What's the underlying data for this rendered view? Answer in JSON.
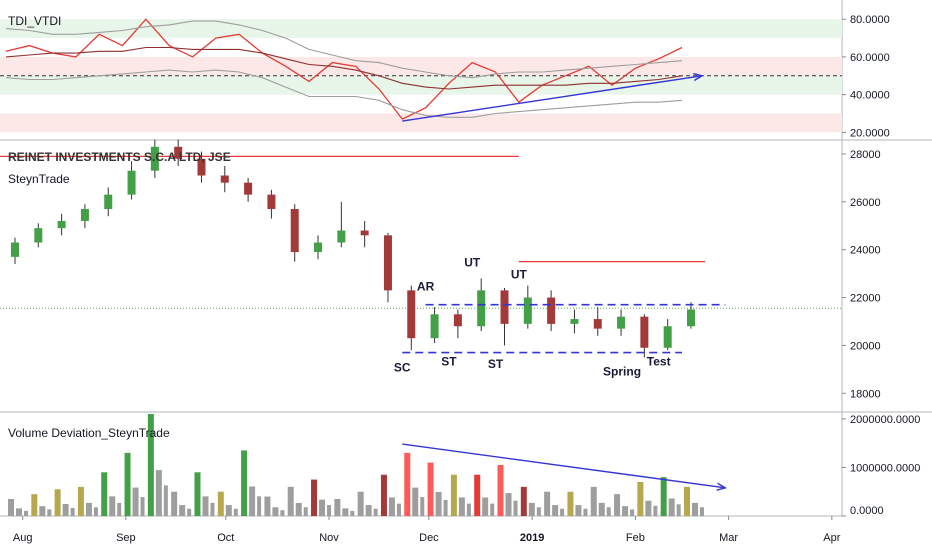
{
  "panes": {
    "tdi": {
      "title": "TDI_VTDI"
    },
    "price": {
      "title": "REINET INVESTMENTS S.C.A LTD, JSE",
      "subtitle": "SteynTrade"
    },
    "volume": {
      "title": "Volume Deviation_SteynTrade"
    }
  },
  "chart_data": [
    {
      "type": "line",
      "pane": "TDI_VTDI",
      "y_ticks": [
        "80.0000",
        "60.0000",
        "40.0000",
        "20.0000"
      ],
      "ylim": [
        17,
        87
      ],
      "reference_line": 50,
      "zones": {
        "green": [
          [
            70,
            80
          ],
          [
            40,
            50
          ]
        ],
        "red": [
          [
            50,
            60
          ],
          [
            20,
            30
          ]
        ]
      },
      "x": [
        "Jul 27",
        "Aug 3",
        "Aug 10",
        "Aug 17",
        "Aug 24",
        "Aug 31",
        "Sep 7",
        "Sep 14",
        "Sep 21",
        "Sep 28",
        "Oct 5",
        "Oct 12",
        "Oct 19",
        "Oct 26",
        "Nov 2",
        "Nov 9",
        "Nov 16",
        "Nov 23",
        "Nov 30",
        "Dec 7",
        "Dec 14",
        "Dec 21",
        "Dec 28",
        "Jan 4",
        "Jan 11",
        "Jan 18",
        "Jan 25",
        "Feb 1",
        "Feb 8",
        "Feb 15"
      ],
      "series": [
        {
          "color": "#e53935",
          "values": [
            63,
            66,
            62,
            60,
            72,
            66,
            80,
            66,
            60,
            70,
            72,
            62,
            55,
            47,
            57,
            55,
            43,
            27,
            33,
            46,
            57,
            52,
            36,
            45,
            50,
            55,
            45,
            54,
            59,
            65
          ]
        },
        {
          "color": "#8d2f2f",
          "values": [
            60,
            61,
            62,
            62,
            63,
            63,
            65,
            65,
            64,
            64,
            64,
            62,
            59,
            56,
            55,
            53,
            50,
            46,
            44,
            43,
            44,
            45,
            45,
            45,
            45,
            46,
            46,
            47,
            48,
            50
          ]
        },
        {
          "color": "#9e9e9e",
          "values": [
            75,
            74,
            72,
            72,
            73,
            74,
            76,
            77,
            79,
            79,
            77,
            74,
            70,
            64,
            61,
            58,
            57,
            54,
            52,
            50,
            49,
            51,
            52,
            52,
            53,
            54,
            55,
            56,
            57,
            58
          ]
        },
        {
          "color": "#9e9e9e",
          "values": [
            49,
            48,
            48,
            49,
            50,
            51,
            52,
            53,
            52,
            53,
            52,
            49,
            44,
            39,
            39,
            39,
            37,
            32,
            29,
            28,
            28,
            30,
            31,
            32,
            33,
            34,
            35,
            36,
            36,
            37
          ]
        }
      ],
      "annotation_arrow": {
        "from": [
          "Nov 23",
          26
        ],
        "to": [
          "Feb 21",
          50
        ],
        "color": "#3535d6"
      }
    },
    {
      "type": "candlestick",
      "pane": "REINET INVESTMENTS S.C.A LTD, JSE",
      "y_ticks": [
        "28000",
        "26000",
        "24000",
        "22000",
        "20000",
        "18000"
      ],
      "ylim": [
        17300,
        28500
      ],
      "current_price": 21550,
      "candles_weekly": [
        {
          "x": "Jul 27",
          "o": 23700,
          "h": 24500,
          "l": 23400,
          "c": 24300
        },
        {
          "x": "Aug 3",
          "o": 24300,
          "h": 25100,
          "l": 24100,
          "c": 24900
        },
        {
          "x": "Aug 10",
          "o": 24900,
          "h": 25500,
          "l": 24600,
          "c": 25200
        },
        {
          "x": "Aug 17",
          "o": 25200,
          "h": 25900,
          "l": 24900,
          "c": 25700
        },
        {
          "x": "Aug 24",
          "o": 25700,
          "h": 26600,
          "l": 25400,
          "c": 26300
        },
        {
          "x": "Aug 31",
          "o": 26300,
          "h": 27700,
          "l": 26100,
          "c": 27300
        },
        {
          "x": "Sep 7",
          "o": 27300,
          "h": 28600,
          "l": 27000,
          "c": 28300
        },
        {
          "x": "Sep 14",
          "o": 28300,
          "h": 28600,
          "l": 27500,
          "c": 27800
        },
        {
          "x": "Sep 21",
          "o": 27800,
          "h": 28100,
          "l": 26800,
          "c": 27100
        },
        {
          "x": "Sep 28",
          "o": 27100,
          "h": 27500,
          "l": 26400,
          "c": 26800
        },
        {
          "x": "Oct 5",
          "o": 26800,
          "h": 27000,
          "l": 26000,
          "c": 26300
        },
        {
          "x": "Oct 12",
          "o": 26300,
          "h": 26500,
          "l": 25300,
          "c": 25700
        },
        {
          "x": "Oct 19",
          "o": 25700,
          "h": 25900,
          "l": 23500,
          "c": 23900
        },
        {
          "x": "Oct 26",
          "o": 23900,
          "h": 24600,
          "l": 23600,
          "c": 24300
        },
        {
          "x": "Nov 2",
          "o": 24300,
          "h": 26000,
          "l": 24100,
          "c": 24800
        },
        {
          "x": "Nov 9",
          "o": 24800,
          "h": 25200,
          "l": 24100,
          "c": 24600
        },
        {
          "x": "Nov 16",
          "o": 24600,
          "h": 24700,
          "l": 21800,
          "c": 22300
        },
        {
          "x": "Nov 23",
          "o": 22300,
          "h": 22500,
          "l": 19800,
          "c": 20300
        },
        {
          "x": "Nov 30",
          "o": 20300,
          "h": 21600,
          "l": 20100,
          "c": 21300
        },
        {
          "x": "Dec 7",
          "o": 21300,
          "h": 21500,
          "l": 20300,
          "c": 20800
        },
        {
          "x": "Dec 14",
          "o": 20800,
          "h": 22800,
          "l": 20600,
          "c": 22300
        },
        {
          "x": "Dec 21",
          "o": 22300,
          "h": 22400,
          "l": 20000,
          "c": 20900
        },
        {
          "x": "Dec 28",
          "o": 20900,
          "h": 22500,
          "l": 20700,
          "c": 22000
        },
        {
          "x": "Jan 4",
          "o": 22000,
          "h": 22300,
          "l": 20600,
          "c": 20900
        },
        {
          "x": "Jan 11",
          "o": 20900,
          "h": 21500,
          "l": 20500,
          "c": 21100
        },
        {
          "x": "Jan 18",
          "o": 21100,
          "h": 21600,
          "l": 20400,
          "c": 20700
        },
        {
          "x": "Jan 25",
          "o": 20700,
          "h": 21500,
          "l": 20400,
          "c": 21200
        },
        {
          "x": "Feb 1",
          "o": 21200,
          "h": 21300,
          "l": 19500,
          "c": 19900
        },
        {
          "x": "Feb 8",
          "o": 19900,
          "h": 21100,
          "l": 19800,
          "c": 20800
        },
        {
          "x": "Feb 15",
          "o": 20800,
          "h": 21800,
          "l": 20700,
          "c": 21500
        }
      ],
      "annotations": [
        "SC",
        "AR",
        "ST",
        "UT",
        "ST",
        "UT",
        "Spring",
        "Test"
      ],
      "range_lines": {
        "upper": 21700,
        "lower": 19700
      },
      "resistance_lines": [
        {
          "value": 27900,
          "color": "#e53935"
        },
        {
          "value": 23500,
          "color": "#e53935"
        }
      ]
    },
    {
      "type": "bar",
      "pane": "Volume Deviation_SteynTrade",
      "y_ticks": [
        "2000000.0000",
        "1000000.0000",
        "0.0000"
      ],
      "ylim": [
        0,
        2100000
      ],
      "bar_colors": {
        "high_up": "#43a047",
        "high_down": "#e53935",
        "mid_up": "#b5a84f",
        "mid_down": "#a33a3a",
        "low": "#9e9e9e",
        "climax": "#ff5a5a"
      },
      "weekly_volumes": [
        {
          "x": "Jul 27",
          "v": 350000,
          "kind": "low"
        },
        {
          "x": "Aug 3",
          "v": 450000,
          "kind": "mid_up"
        },
        {
          "x": "Aug 10",
          "v": 550000,
          "kind": "mid_up"
        },
        {
          "x": "Aug 17",
          "v": 600000,
          "kind": "mid_up"
        },
        {
          "x": "Aug 24",
          "v": 900000,
          "kind": "high_up"
        },
        {
          "x": "Aug 31",
          "v": 1300000,
          "kind": "high_up"
        },
        {
          "x": "Sep 7",
          "v": 2100000,
          "kind": "high_up"
        },
        {
          "x": "Sep 14",
          "v": 500000,
          "kind": "low"
        },
        {
          "x": "Sep 21",
          "v": 900000,
          "kind": "high_up"
        },
        {
          "x": "Sep 28",
          "v": 500000,
          "kind": "mid_up"
        },
        {
          "x": "Oct 5",
          "v": 1350000,
          "kind": "high_up"
        },
        {
          "x": "Oct 12",
          "v": 400000,
          "kind": "low"
        },
        {
          "x": "Oct 19",
          "v": 600000,
          "kind": "low"
        },
        {
          "x": "Oct 26",
          "v": 750000,
          "kind": "mid_down"
        },
        {
          "x": "Nov 2",
          "v": 350000,
          "kind": "low"
        },
        {
          "x": "Nov 9",
          "v": 500000,
          "kind": "low"
        },
        {
          "x": "Nov 16",
          "v": 850000,
          "kind": "mid_down"
        },
        {
          "x": "Nov 23",
          "v": 1300000,
          "kind": "climax"
        },
        {
          "x": "Nov 30",
          "v": 1100000,
          "kind": "climax"
        },
        {
          "x": "Dec 7",
          "v": 850000,
          "kind": "mid_up"
        },
        {
          "x": "Dec 14",
          "v": 850000,
          "kind": "high_down"
        },
        {
          "x": "Dec 21",
          "v": 1050000,
          "kind": "climax"
        },
        {
          "x": "Dec 28",
          "v": 600000,
          "kind": "mid_down"
        },
        {
          "x": "Jan 4",
          "v": 500000,
          "kind": "low"
        },
        {
          "x": "Jan 11",
          "v": 500000,
          "kind": "mid_up"
        },
        {
          "x": "Jan 18",
          "v": 600000,
          "kind": "low"
        },
        {
          "x": "Jan 25",
          "v": 450000,
          "kind": "low"
        },
        {
          "x": "Feb 1",
          "v": 700000,
          "kind": "mid_up"
        },
        {
          "x": "Feb 8",
          "v": 800000,
          "kind": "high_up"
        },
        {
          "x": "Feb 15",
          "v": 600000,
          "kind": "mid_up"
        }
      ],
      "annotation_arrow": {
        "from": [
          "Nov 23",
          1480000
        ],
        "to": [
          "Feb 28",
          580000
        ],
        "color": "#3535d6"
      }
    }
  ],
  "x_axis": {
    "labels": [
      "Aug",
      "Sep",
      "Oct",
      "Nov",
      "Dec",
      "2019",
      "Feb",
      "Mar",
      "Apr"
    ],
    "highlight": "2019"
  }
}
